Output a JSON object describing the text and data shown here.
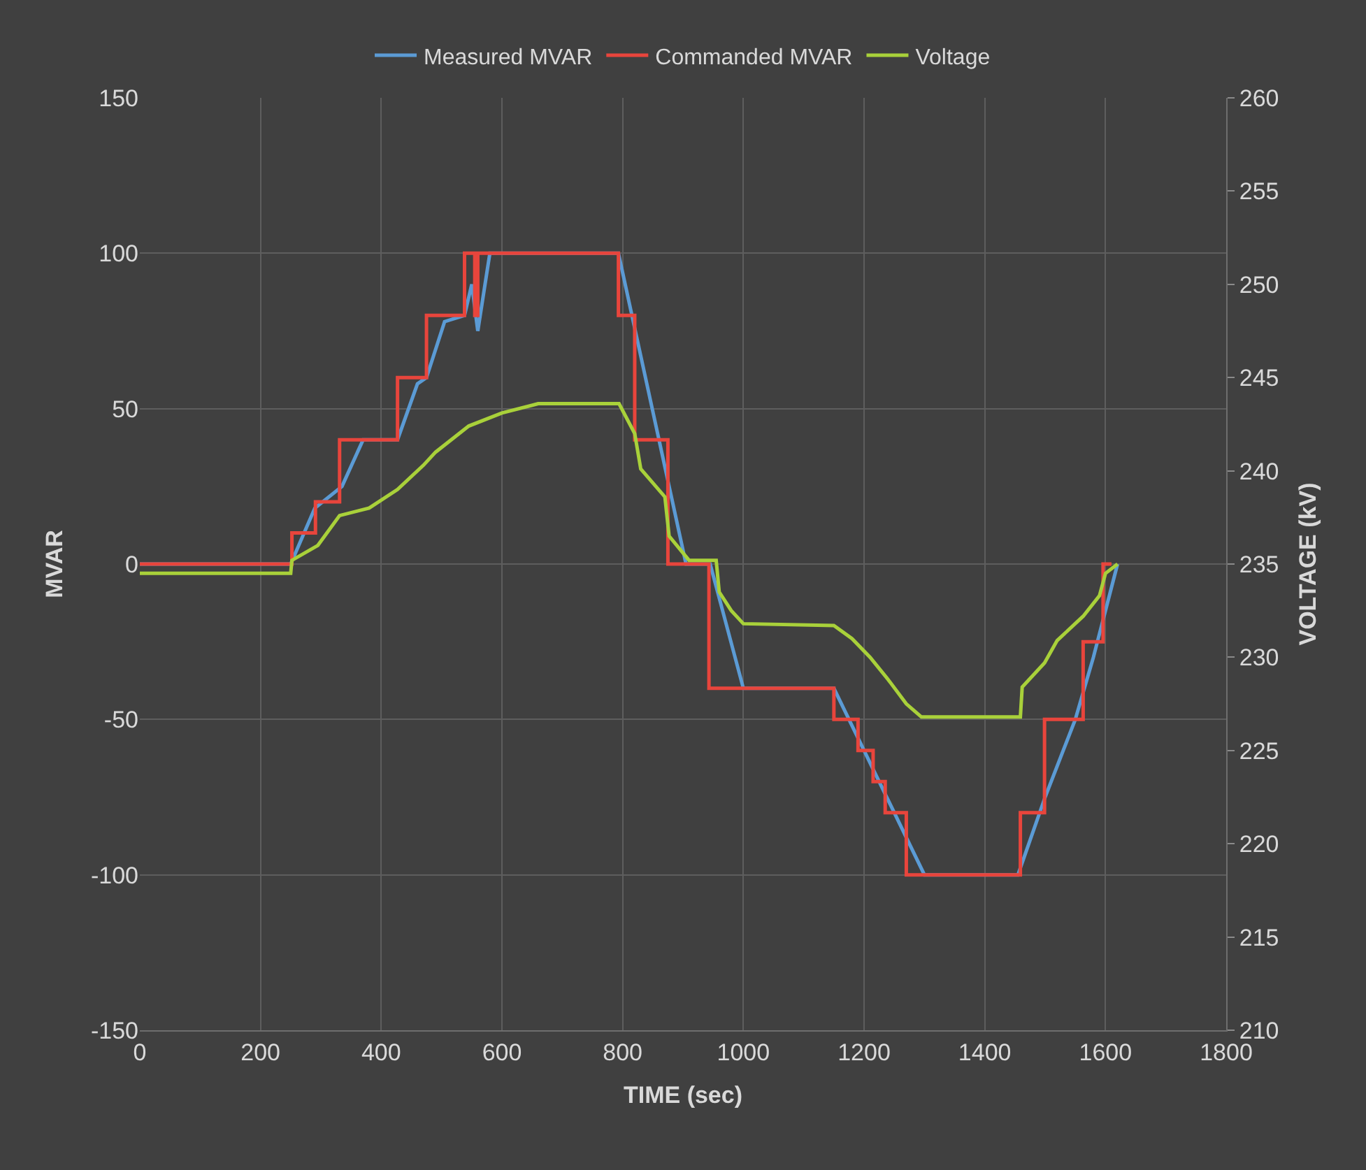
{
  "chart_data": {
    "type": "line",
    "xlabel": "TIME (sec)",
    "ylabel": "MVAR",
    "y2label": "VOLTAGE (kV)",
    "xlim": [
      0,
      1800
    ],
    "xticks": [
      0,
      200,
      400,
      600,
      800,
      1000,
      1200,
      1400,
      1600,
      1800
    ],
    "ylim": [
      -150,
      150
    ],
    "yticks": [
      -150,
      -100,
      -50,
      0,
      50,
      100,
      150
    ],
    "y2lim": [
      210,
      260
    ],
    "y2ticks": [
      210,
      215,
      220,
      225,
      230,
      235,
      240,
      245,
      250,
      255,
      260
    ],
    "grid": true,
    "legend": "top",
    "line_style": "solid",
    "marker": "none",
    "series": [
      {
        "name": "Measured MVAR",
        "color": "#5b9bd5",
        "x": [
          0,
          250,
          290,
          335,
          370,
          427,
          460,
          475,
          505,
          538,
          550,
          560,
          580,
          793,
          905,
          945,
          1000,
          1150,
          1300,
          1455,
          1500,
          1550,
          1580,
          1620
        ],
        "values": [
          0,
          0,
          18,
          25,
          40,
          40,
          58,
          60,
          78,
          80,
          90,
          75,
          100,
          100,
          0,
          0,
          -40,
          -40,
          -100,
          -100,
          -75,
          -50,
          -30,
          0
        ]
      },
      {
        "name": "Commanded MVAR",
        "color": "#e8453c",
        "type": "step",
        "x": [
          0,
          252,
          291,
          331,
          427,
          475,
          538,
          548,
          555,
          560,
          793,
          820,
          875,
          943,
          1150,
          1190,
          1215,
          1235,
          1270,
          1459,
          1499,
          1563,
          1596,
          1610
        ],
        "values": [
          0,
          10,
          20,
          40,
          60,
          80,
          100,
          100,
          80,
          100,
          80,
          40,
          0,
          -40,
          -50,
          -60,
          -70,
          -80,
          -100,
          -80,
          -50,
          -25,
          0,
          0
        ]
      },
      {
        "name": "Voltage",
        "color": "#a9d13a",
        "axis": "y2",
        "x": [
          0,
          250,
          252,
          295,
          331,
          380,
          427,
          470,
          490,
          545,
          600,
          660,
          794,
          820,
          830,
          870,
          877,
          910,
          955,
          960,
          980,
          1000,
          1150,
          1180,
          1210,
          1240,
          1270,
          1295,
          1459,
          1462,
          1499,
          1520,
          1563,
          1590,
          1600,
          1620
        ],
        "values": [
          234.5,
          234.5,
          235.2,
          236,
          237.6,
          238,
          239,
          240.3,
          241,
          242.4,
          243.1,
          243.6,
          243.6,
          242,
          240.1,
          238.6,
          236.5,
          235.2,
          235.2,
          233.5,
          232.5,
          231.8,
          231.7,
          231,
          230,
          228.8,
          227.5,
          226.8,
          226.8,
          228.4,
          229.7,
          230.9,
          232.2,
          233.3,
          234.5,
          235
        ]
      }
    ]
  }
}
